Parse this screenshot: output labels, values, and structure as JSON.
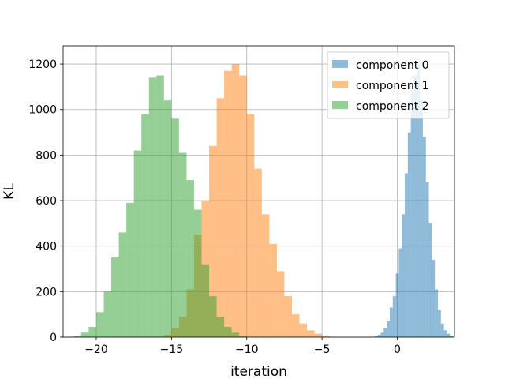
{
  "chart_data": {
    "type": "histogram",
    "xlabel": "iteration",
    "ylabel": "KL",
    "xlim": [
      -22.2,
      3.8
    ],
    "ylim": [
      0,
      1280
    ],
    "xticks": [
      -20,
      -15,
      -10,
      -5,
      0
    ],
    "xtick_labels": [
      "−20",
      "−15",
      "−10",
      "−5",
      "0"
    ],
    "yticks": [
      0,
      200,
      400,
      600,
      800,
      1000,
      1200
    ],
    "ytick_labels": [
      "0",
      "200",
      "400",
      "600",
      "800",
      "1000",
      "1200"
    ],
    "grid": true,
    "legend_position": "top-right",
    "series": [
      {
        "name": "component 0",
        "color": "#1f77b4",
        "bin_start": -1.5,
        "bin_width": 0.2,
        "values": [
          5,
          10,
          20,
          40,
          70,
          130,
          180,
          280,
          390,
          540,
          720,
          900,
          1080,
          1150,
          1200,
          1040,
          880,
          680,
          500,
          340,
          210,
          120,
          60,
          30,
          15,
          5
        ]
      },
      {
        "name": "component 1",
        "color": "#ff7f0e",
        "bin_start": -15.5,
        "bin_width": 0.5,
        "values": [
          10,
          40,
          90,
          210,
          450,
          600,
          840,
          1050,
          1170,
          1200,
          1150,
          980,
          740,
          540,
          410,
          290,
          180,
          100,
          60,
          30,
          15,
          5
        ]
      },
      {
        "name": "component 2",
        "color": "#2ca02c",
        "bin_start": -21.5,
        "bin_width": 0.5,
        "values": [
          5,
          20,
          45,
          110,
          200,
          350,
          460,
          590,
          820,
          980,
          1140,
          1150,
          1040,
          960,
          810,
          690,
          560,
          320,
          180,
          90,
          45,
          20,
          5
        ]
      }
    ]
  }
}
